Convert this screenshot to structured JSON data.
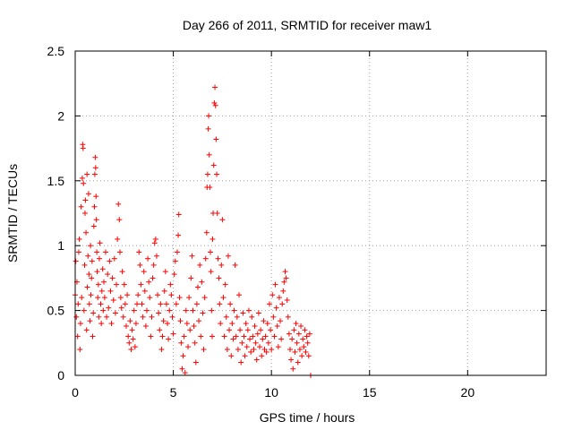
{
  "chart_data": {
    "type": "scatter",
    "title": "Day 266 of 2011, SRMTID for receiver maw1",
    "xlabel": "GPS time / hours",
    "ylabel": "SRMTID / TECUs",
    "xlim": [
      0,
      24
    ],
    "ylim": [
      0,
      2.5
    ],
    "x_ticks": [
      0,
      5,
      10,
      15,
      20
    ],
    "x_tick_labels": [
      "0",
      "5",
      "10",
      "15",
      "20"
    ],
    "y_ticks": [
      0,
      0.5,
      1,
      1.5,
      2,
      2.5
    ],
    "y_tick_labels": [
      "0",
      "0.5",
      "1",
      "1.5",
      "2",
      "2.5"
    ],
    "grid": true,
    "marker": "+",
    "color": "#ff0000",
    "series": [
      {
        "name": "SRMTID",
        "points": [
          [
            0.0,
            0.62
          ],
          [
            0.03,
            0.88
          ],
          [
            0.06,
            0.45
          ],
          [
            0.09,
            0.72
          ],
          [
            0.12,
            0.3
          ],
          [
            0.15,
            0.55
          ],
          [
            0.18,
            0.95
          ],
          [
            0.21,
            1.05
          ],
          [
            0.24,
            0.2
          ],
          [
            0.27,
            0.4
          ],
          [
            0.3,
            1.3
          ],
          [
            0.33,
            0.6
          ],
          [
            0.36,
            1.52
          ],
          [
            0.38,
            1.78
          ],
          [
            0.4,
            1.75
          ],
          [
            0.42,
            1.48
          ],
          [
            0.45,
            0.5
          ],
          [
            0.48,
            0.85
          ],
          [
            0.5,
            1.25
          ],
          [
            0.52,
            1.35
          ],
          [
            0.55,
            1.1
          ],
          [
            0.58,
            0.35
          ],
          [
            0.6,
            1.55
          ],
          [
            0.62,
            0.68
          ],
          [
            0.65,
            0.92
          ],
          [
            0.68,
            1.4
          ],
          [
            0.7,
            0.78
          ],
          [
            0.72,
            0.55
          ],
          [
            0.75,
            0.42
          ],
          [
            0.78,
            1.0
          ],
          [
            0.8,
            0.62
          ],
          [
            0.83,
            0.75
          ],
          [
            0.86,
            0.88
          ],
          [
            0.89,
            0.3
          ],
          [
            0.92,
            0.48
          ],
          [
            0.95,
            1.15
          ],
          [
            0.98,
            1.3
          ],
          [
            1.0,
            1.55
          ],
          [
            1.02,
            1.68
          ],
          [
            1.04,
            1.6
          ],
          [
            1.06,
            1.38
          ],
          [
            1.08,
            1.2
          ],
          [
            1.1,
            0.95
          ],
          [
            1.12,
            0.8
          ],
          [
            1.15,
            0.6
          ],
          [
            1.18,
            0.7
          ],
          [
            1.2,
            0.45
          ],
          [
            1.23,
            0.9
          ],
          [
            1.26,
            1.02
          ],
          [
            1.3,
            0.55
          ],
          [
            1.33,
            0.4
          ],
          [
            1.36,
            0.65
          ],
          [
            1.4,
            0.82
          ],
          [
            1.43,
            0.5
          ],
          [
            1.46,
            0.72
          ],
          [
            1.5,
            0.6
          ],
          [
            1.55,
            0.95
          ],
          [
            1.6,
            0.45
          ],
          [
            1.65,
            0.78
          ],
          [
            1.7,
            0.52
          ],
          [
            1.75,
            0.88
          ],
          [
            1.8,
            0.65
          ],
          [
            1.85,
            0.4
          ],
          [
            1.9,
            0.75
          ],
          [
            1.95,
            0.58
          ],
          [
            2.0,
            0.9
          ],
          [
            2.05,
            0.48
          ],
          [
            2.1,
            0.7
          ],
          [
            2.15,
            1.05
          ],
          [
            2.2,
            1.32
          ],
          [
            2.25,
            1.2
          ],
          [
            2.28,
            0.95
          ],
          [
            2.32,
            0.6
          ],
          [
            2.36,
            0.52
          ],
          [
            2.4,
            0.8
          ],
          [
            2.45,
            0.45
          ],
          [
            2.5,
            0.7
          ],
          [
            2.55,
            0.55
          ],
          [
            2.6,
            0.38
          ],
          [
            2.65,
            0.62
          ],
          [
            2.7,
            0.3
          ],
          [
            2.75,
            0.25
          ],
          [
            2.8,
            0.42
          ],
          [
            2.85,
            0.2
          ],
          [
            2.9,
            0.35
          ],
          [
            2.95,
            0.28
          ],
          [
            3.0,
            0.5
          ],
          [
            3.05,
            0.22
          ],
          [
            3.1,
            0.4
          ],
          [
            3.15,
            0.55
          ],
          [
            3.2,
            0.62
          ],
          [
            3.25,
            0.95
          ],
          [
            3.3,
            0.85
          ],
          [
            3.35,
            0.7
          ],
          [
            3.4,
            0.55
          ],
          [
            3.45,
            0.45
          ],
          [
            3.5,
            0.8
          ],
          [
            3.55,
            0.65
          ],
          [
            3.6,
            0.38
          ],
          [
            3.65,
            0.5
          ],
          [
            3.7,
            0.9
          ],
          [
            3.75,
            0.72
          ],
          [
            3.8,
            0.6
          ],
          [
            3.85,
            0.3
          ],
          [
            3.9,
            0.45
          ],
          [
            3.95,
            0.75
          ],
          [
            4.0,
            0.85
          ],
          [
            4.05,
            1.02
          ],
          [
            4.1,
            1.05
          ],
          [
            4.15,
            0.92
          ],
          [
            4.2,
            0.62
          ],
          [
            4.25,
            0.48
          ],
          [
            4.3,
            0.35
          ],
          [
            4.35,
            0.55
          ],
          [
            4.4,
            0.2
          ],
          [
            4.45,
            0.3
          ],
          [
            4.5,
            0.42
          ],
          [
            4.55,
            0.65
          ],
          [
            4.6,
            0.8
          ],
          [
            4.65,
            0.55
          ],
          [
            4.7,
            0.4
          ],
          [
            4.75,
            0.28
          ],
          [
            4.8,
            0.5
          ],
          [
            4.85,
            0.7
          ],
          [
            4.9,
            0.62
          ],
          [
            4.95,
            0.45
          ],
          [
            5.0,
            0.32
          ],
          [
            5.05,
            0.78
          ],
          [
            5.1,
            0.88
          ],
          [
            5.15,
            0.55
          ],
          [
            5.2,
            0.95
          ],
          [
            5.25,
            1.08
          ],
          [
            5.28,
            1.24
          ],
          [
            5.32,
            0.6
          ],
          [
            5.36,
            0.42
          ],
          [
            5.4,
            0.25
          ],
          [
            5.45,
            0.05
          ],
          [
            5.5,
            0.15
          ],
          [
            5.55,
            0.3
          ],
          [
            5.6,
            0.02
          ],
          [
            5.65,
            0.5
          ],
          [
            5.7,
            0.4
          ],
          [
            5.75,
            0.22
          ],
          [
            5.8,
            0.6
          ],
          [
            5.85,
            0.35
          ],
          [
            5.9,
            0.75
          ],
          [
            5.95,
            0.92
          ],
          [
            6.0,
            0.5
          ],
          [
            6.05,
            0.38
          ],
          [
            6.1,
            0.25
          ],
          [
            6.15,
            0.1
          ],
          [
            6.2,
            0.55
          ],
          [
            6.25,
            0.68
          ],
          [
            6.3,
            0.42
          ],
          [
            6.35,
            0.85
          ],
          [
            6.4,
            0.3
          ],
          [
            6.45,
            0.72
          ],
          [
            6.5,
            0.48
          ],
          [
            6.55,
            0.2
          ],
          [
            6.6,
            0.6
          ],
          [
            6.65,
            0.9
          ],
          [
            6.7,
            1.1
          ],
          [
            6.72,
            1.45
          ],
          [
            6.75,
            1.55
          ],
          [
            6.78,
            1.9
          ],
          [
            6.8,
            2.0
          ],
          [
            6.83,
            1.7
          ],
          [
            6.86,
            1.45
          ],
          [
            6.89,
            0.95
          ],
          [
            6.92,
            0.8
          ],
          [
            6.95,
            0.5
          ],
          [
            6.98,
            0.3
          ],
          [
            7.0,
            1.05
          ],
          [
            7.03,
            1.25
          ],
          [
            7.06,
            1.62
          ],
          [
            7.09,
            2.1
          ],
          [
            7.12,
            2.22
          ],
          [
            7.15,
            2.08
          ],
          [
            7.18,
            1.82
          ],
          [
            7.21,
            1.55
          ],
          [
            7.24,
            1.25
          ],
          [
            7.28,
            0.9
          ],
          [
            7.32,
            0.75
          ],
          [
            7.36,
            0.55
          ],
          [
            7.4,
            0.4
          ],
          [
            7.45,
            0.85
          ],
          [
            7.5,
            1.2
          ],
          [
            7.55,
            0.6
          ],
          [
            7.6,
            0.3
          ],
          [
            7.65,
            0.7
          ],
          [
            7.7,
            0.45
          ],
          [
            7.75,
            0.2
          ],
          [
            7.8,
            0.92
          ],
          [
            7.85,
            0.35
          ],
          [
            7.9,
            0.55
          ],
          [
            7.95,
            0.15
          ],
          [
            8.0,
            0.4
          ],
          [
            8.05,
            0.28
          ],
          [
            8.1,
            0.5
          ],
          [
            8.15,
            0.85
          ],
          [
            8.2,
            0.3
          ],
          [
            8.25,
            0.45
          ],
          [
            8.3,
            0.2
          ],
          [
            8.35,
            0.62
          ],
          [
            8.4,
            0.35
          ],
          [
            8.45,
            0.1
          ],
          [
            8.5,
            0.25
          ],
          [
            8.55,
            0.48
          ],
          [
            8.6,
            0.3
          ],
          [
            8.65,
            0.15
          ],
          [
            8.7,
            0.4
          ],
          [
            8.75,
            0.22
          ],
          [
            8.8,
            0.35
          ],
          [
            8.85,
            0.5
          ],
          [
            8.9,
            0.28
          ],
          [
            8.95,
            0.18
          ],
          [
            9.0,
            0.45
          ],
          [
            9.05,
            0.3
          ],
          [
            9.1,
            0.2
          ],
          [
            9.15,
            0.38
          ],
          [
            9.2,
            0.25
          ],
          [
            9.25,
            0.12
          ],
          [
            9.3,
            0.32
          ],
          [
            9.35,
            0.48
          ],
          [
            9.4,
            0.22
          ],
          [
            9.45,
            0.35
          ],
          [
            9.5,
            0.15
          ],
          [
            9.55,
            0.28
          ],
          [
            9.6,
            0.42
          ],
          [
            9.65,
            0.2
          ],
          [
            9.7,
            0.3
          ],
          [
            9.75,
            0.18
          ],
          [
            9.8,
            0.4
          ],
          [
            9.85,
            0.25
          ],
          [
            9.9,
            0.55
          ],
          [
            9.95,
            0.35
          ],
          [
            10.0,
            0.2
          ],
          [
            10.05,
            0.62
          ],
          [
            10.1,
            0.45
          ],
          [
            10.15,
            0.3
          ],
          [
            10.2,
            0.7
          ],
          [
            10.25,
            0.52
          ],
          [
            10.3,
            0.38
          ],
          [
            10.35,
            0.22
          ],
          [
            10.4,
            0.6
          ],
          [
            10.45,
            0.42
          ],
          [
            10.5,
            0.28
          ],
          [
            10.55,
            0.55
          ],
          [
            10.6,
            0.65
          ],
          [
            10.65,
            0.72
          ],
          [
            10.7,
            0.8
          ],
          [
            10.75,
            0.75
          ],
          [
            10.8,
            0.58
          ],
          [
            10.85,
            0.45
          ],
          [
            10.9,
            0.32
          ],
          [
            10.95,
            0.2
          ],
          [
            11.0,
            0.12
          ],
          [
            11.05,
            0.28
          ],
          [
            11.1,
            0.05
          ],
          [
            11.15,
            0.35
          ],
          [
            11.2,
            0.18
          ],
          [
            11.25,
            0.4
          ],
          [
            11.3,
            0.25
          ],
          [
            11.35,
            0.1
          ],
          [
            11.4,
            0.32
          ],
          [
            11.45,
            0.2
          ],
          [
            11.5,
            0.38
          ],
          [
            11.55,
            0.15
          ],
          [
            11.6,
            0.28
          ],
          [
            11.65,
            0.22
          ],
          [
            11.7,
            0.35
          ],
          [
            11.75,
            0.18
          ],
          [
            11.8,
            0.3
          ],
          [
            11.85,
            0.25
          ],
          [
            11.9,
            0.15
          ],
          [
            11.95,
            0.32
          ],
          [
            12.0,
            0.0
          ]
        ]
      }
    ]
  }
}
